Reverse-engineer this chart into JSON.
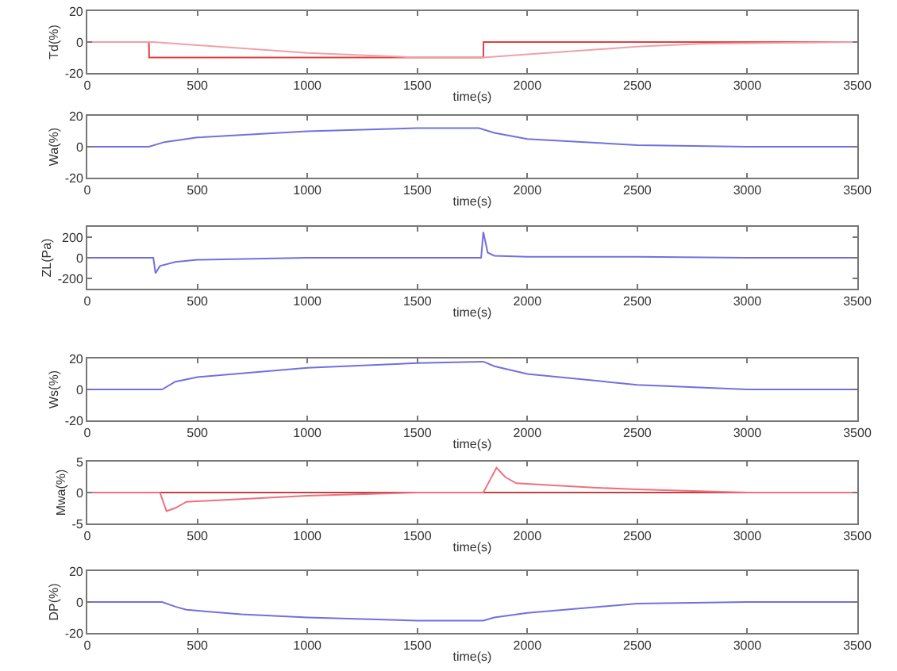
{
  "chart_data": [
    {
      "type": "line",
      "xlabel": "time(s)",
      "ylabel": "Td(%)",
      "xlim": [
        0,
        3500
      ],
      "xticks": [
        0,
        500,
        1000,
        1500,
        2000,
        2500,
        3000,
        3500
      ],
      "ylim": [
        -20,
        20
      ],
      "yticks": [
        -20,
        0,
        20
      ],
      "series": [
        {
          "color": "#e04040",
          "x": [
            0,
            280,
            281,
            1800,
            1801,
            3500
          ],
          "values": [
            0,
            0,
            -10,
            -10,
            0,
            0
          ]
        },
        {
          "color": "#f0a0a8",
          "x": [
            0,
            300,
            500,
            1000,
            1500,
            1800,
            2000,
            2500,
            2800,
            3500
          ],
          "values": [
            0,
            0,
            -2,
            -7,
            -10,
            -10,
            -8,
            -3,
            -1,
            0
          ]
        }
      ]
    },
    {
      "type": "line",
      "xlabel": "time(s)",
      "ylabel": "Wa(%)",
      "xlim": [
        0,
        3500
      ],
      "xticks": [
        0,
        500,
        1000,
        1500,
        2000,
        2500,
        3000,
        3500
      ],
      "ylim": [
        -20,
        20
      ],
      "yticks": [
        -20,
        0,
        20
      ],
      "series": [
        {
          "color": "#7070e0",
          "x": [
            0,
            280,
            350,
            500,
            1000,
            1500,
            1780,
            1850,
            2000,
            2500,
            3000,
            3500
          ],
          "values": [
            0,
            0,
            3,
            6,
            10,
            12,
            12,
            9,
            5,
            1,
            0,
            0
          ]
        }
      ]
    },
    {
      "type": "line",
      "xlabel": "time(s)",
      "ylabel": "ZL(Pa)",
      "xlim": [
        0,
        3500
      ],
      "xticks": [
        0,
        500,
        1000,
        1500,
        2000,
        2500,
        3000,
        3500
      ],
      "ylim": [
        -300,
        300
      ],
      "yticks": [
        -200,
        0,
        200
      ],
      "series": [
        {
          "color": "#7070e0",
          "x": [
            0,
            300,
            310,
            330,
            400,
            500,
            1000,
            1500,
            1790,
            1800,
            1820,
            1850,
            2000,
            2500,
            3000,
            3500
          ],
          "values": [
            0,
            0,
            -150,
            -80,
            -40,
            -20,
            0,
            0,
            0,
            250,
            50,
            20,
            10,
            10,
            0,
            0
          ]
        }
      ]
    },
    {
      "type": "line",
      "xlabel": "time(s)",
      "ylabel": "Ws(%)",
      "xlim": [
        0,
        3500
      ],
      "xticks": [
        0,
        500,
        1000,
        1500,
        2000,
        2500,
        3000,
        3500
      ],
      "ylim": [
        -20,
        20
      ],
      "yticks": [
        -20,
        0,
        20
      ],
      "series": [
        {
          "color": "#7070e0",
          "x": [
            0,
            340,
            400,
            500,
            1000,
            1500,
            1800,
            1850,
            2000,
            2500,
            3000,
            3500
          ],
          "values": [
            0,
            0,
            5,
            8,
            14,
            17,
            18,
            15,
            10,
            3,
            0,
            0
          ]
        }
      ]
    },
    {
      "type": "line",
      "xlabel": "time(s)",
      "ylabel": "Mwa(%)",
      "xlim": [
        0,
        3500
      ],
      "xticks": [
        0,
        500,
        1000,
        1500,
        2000,
        2500,
        3000,
        3500
      ],
      "ylim": [
        -5,
        5
      ],
      "yticks": [
        -5,
        0,
        5
      ],
      "series": [
        {
          "color": "#c04040",
          "x": [
            0,
            3500
          ],
          "values": [
            0,
            0
          ]
        },
        {
          "color": "#f07080",
          "x": [
            0,
            330,
            360,
            400,
            450,
            1000,
            1500,
            1800,
            1830,
            1860,
            1900,
            1950,
            2300,
            2500,
            3000,
            3500
          ],
          "values": [
            0,
            0,
            -3,
            -2.5,
            -1.5,
            -0.5,
            0,
            0,
            2,
            4,
            2.5,
            1.5,
            0.8,
            0.5,
            0,
            0
          ]
        }
      ]
    },
    {
      "type": "line",
      "xlabel": "time(s)",
      "ylabel": "DP(%)",
      "xlim": [
        0,
        3500
      ],
      "xticks": [
        0,
        500,
        1000,
        1500,
        2000,
        2500,
        3000,
        3500
      ],
      "ylim": [
        -20,
        20
      ],
      "yticks": [
        -20,
        0,
        20
      ],
      "series": [
        {
          "color": "#7070e0",
          "x": [
            0,
            340,
            400,
            450,
            700,
            1000,
            1500,
            1800,
            1850,
            2000,
            2500,
            3000,
            3500
          ],
          "values": [
            0,
            0,
            -3,
            -5,
            -8,
            -10,
            -12,
            -12,
            -10,
            -7,
            -1,
            0,
            0
          ]
        }
      ]
    }
  ]
}
